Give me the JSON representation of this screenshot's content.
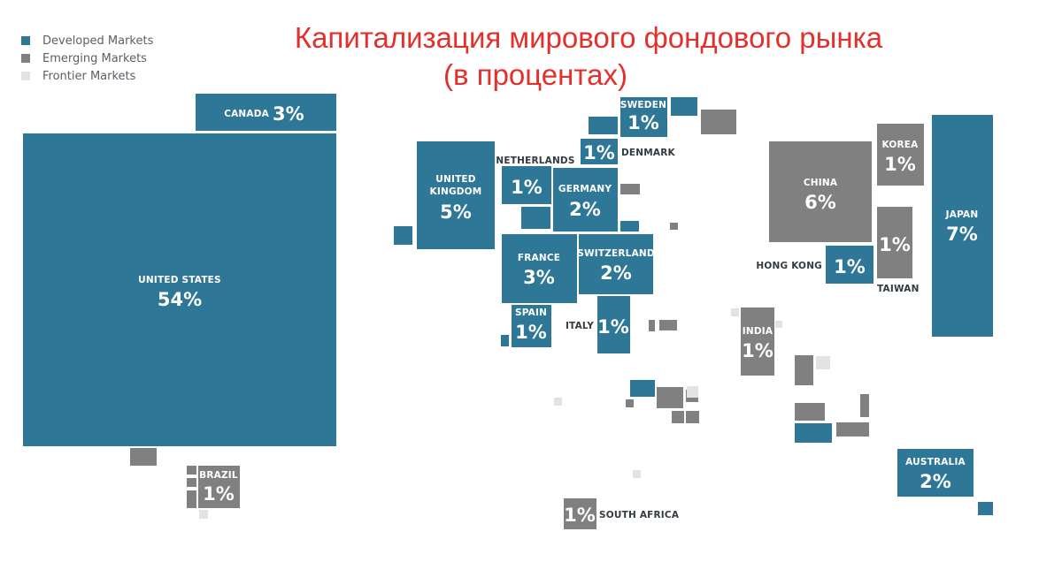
{
  "title": {
    "line1": "Капитализация мирового фондового рынка",
    "line2": "(в процентах)"
  },
  "legend": [
    {
      "label": "Developed Markets",
      "color": "#2f7796"
    },
    {
      "label": "Emerging Markets",
      "color": "#808080"
    },
    {
      "label": "Frontier Markets",
      "color": "#e3e3e3"
    }
  ],
  "colors": {
    "developed": "#2f7796",
    "emerging": "#808080",
    "frontier": "#e3e3e3"
  },
  "chart_data": {
    "type": "treemap-cartogram",
    "title": "Капитализация мирового фондового рынка (в процентах)",
    "unit": "%",
    "series": [
      {
        "name": "Developed Markets",
        "values": [
          {
            "country": "UNITED STATES",
            "value": 54
          },
          {
            "country": "JAPAN",
            "value": 7
          },
          {
            "country": "UNITED KINGDOM",
            "value": 5
          },
          {
            "country": "CANADA",
            "value": 3
          },
          {
            "country": "FRANCE",
            "value": 3
          },
          {
            "country": "GERMANY",
            "value": 2
          },
          {
            "country": "SWITZERLAND",
            "value": 2
          },
          {
            "country": "AUSTRALIA",
            "value": 2
          },
          {
            "country": "SWEDEN",
            "value": 1
          },
          {
            "country": "DENMARK",
            "value": 1
          },
          {
            "country": "NETHERLANDS",
            "value": 1
          },
          {
            "country": "SPAIN",
            "value": 1
          },
          {
            "country": "ITALY",
            "value": 1
          },
          {
            "country": "HONG KONG",
            "value": 1
          }
        ]
      },
      {
        "name": "Emerging Markets",
        "values": [
          {
            "country": "CHINA",
            "value": 6
          },
          {
            "country": "KOREA",
            "value": 1
          },
          {
            "country": "TAIWAN",
            "value": 1
          },
          {
            "country": "INDIA",
            "value": 1
          },
          {
            "country": "BRAZIL",
            "value": 1
          },
          {
            "country": "SOUTH AFRICA",
            "value": 1
          }
        ]
      }
    ]
  }
}
